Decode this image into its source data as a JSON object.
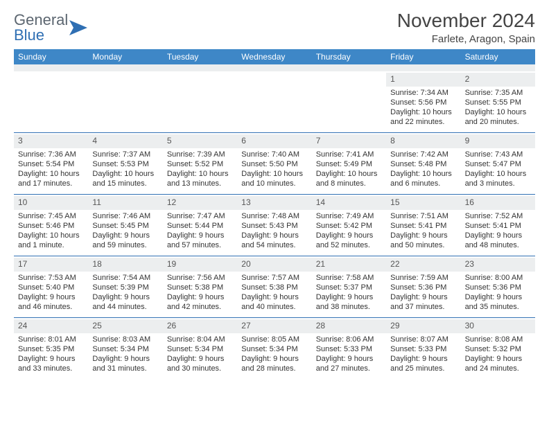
{
  "brand": {
    "part1": "General",
    "part2": "Blue"
  },
  "title": "November 2024",
  "location": "Farlete, Aragon, Spain",
  "colors": {
    "header_bg": "#3e87c7",
    "rule": "#2f6fb3",
    "numbar_bg": "#eceeef",
    "text": "#333333"
  },
  "dow": [
    "Sunday",
    "Monday",
    "Tuesday",
    "Wednesday",
    "Thursday",
    "Friday",
    "Saturday"
  ],
  "weeks": [
    [
      {
        "n": "",
        "sr": "",
        "ss": "",
        "dl": ""
      },
      {
        "n": "",
        "sr": "",
        "ss": "",
        "dl": ""
      },
      {
        "n": "",
        "sr": "",
        "ss": "",
        "dl": ""
      },
      {
        "n": "",
        "sr": "",
        "ss": "",
        "dl": ""
      },
      {
        "n": "",
        "sr": "",
        "ss": "",
        "dl": ""
      },
      {
        "n": "1",
        "sr": "Sunrise: 7:34 AM",
        "ss": "Sunset: 5:56 PM",
        "dl": "Daylight: 10 hours and 22 minutes."
      },
      {
        "n": "2",
        "sr": "Sunrise: 7:35 AM",
        "ss": "Sunset: 5:55 PM",
        "dl": "Daylight: 10 hours and 20 minutes."
      }
    ],
    [
      {
        "n": "3",
        "sr": "Sunrise: 7:36 AM",
        "ss": "Sunset: 5:54 PM",
        "dl": "Daylight: 10 hours and 17 minutes."
      },
      {
        "n": "4",
        "sr": "Sunrise: 7:37 AM",
        "ss": "Sunset: 5:53 PM",
        "dl": "Daylight: 10 hours and 15 minutes."
      },
      {
        "n": "5",
        "sr": "Sunrise: 7:39 AM",
        "ss": "Sunset: 5:52 PM",
        "dl": "Daylight: 10 hours and 13 minutes."
      },
      {
        "n": "6",
        "sr": "Sunrise: 7:40 AM",
        "ss": "Sunset: 5:50 PM",
        "dl": "Daylight: 10 hours and 10 minutes."
      },
      {
        "n": "7",
        "sr": "Sunrise: 7:41 AM",
        "ss": "Sunset: 5:49 PM",
        "dl": "Daylight: 10 hours and 8 minutes."
      },
      {
        "n": "8",
        "sr": "Sunrise: 7:42 AM",
        "ss": "Sunset: 5:48 PM",
        "dl": "Daylight: 10 hours and 6 minutes."
      },
      {
        "n": "9",
        "sr": "Sunrise: 7:43 AM",
        "ss": "Sunset: 5:47 PM",
        "dl": "Daylight: 10 hours and 3 minutes."
      }
    ],
    [
      {
        "n": "10",
        "sr": "Sunrise: 7:45 AM",
        "ss": "Sunset: 5:46 PM",
        "dl": "Daylight: 10 hours and 1 minute."
      },
      {
        "n": "11",
        "sr": "Sunrise: 7:46 AM",
        "ss": "Sunset: 5:45 PM",
        "dl": "Daylight: 9 hours and 59 minutes."
      },
      {
        "n": "12",
        "sr": "Sunrise: 7:47 AM",
        "ss": "Sunset: 5:44 PM",
        "dl": "Daylight: 9 hours and 57 minutes."
      },
      {
        "n": "13",
        "sr": "Sunrise: 7:48 AM",
        "ss": "Sunset: 5:43 PM",
        "dl": "Daylight: 9 hours and 54 minutes."
      },
      {
        "n": "14",
        "sr": "Sunrise: 7:49 AM",
        "ss": "Sunset: 5:42 PM",
        "dl": "Daylight: 9 hours and 52 minutes."
      },
      {
        "n": "15",
        "sr": "Sunrise: 7:51 AM",
        "ss": "Sunset: 5:41 PM",
        "dl": "Daylight: 9 hours and 50 minutes."
      },
      {
        "n": "16",
        "sr": "Sunrise: 7:52 AM",
        "ss": "Sunset: 5:41 PM",
        "dl": "Daylight: 9 hours and 48 minutes."
      }
    ],
    [
      {
        "n": "17",
        "sr": "Sunrise: 7:53 AM",
        "ss": "Sunset: 5:40 PM",
        "dl": "Daylight: 9 hours and 46 minutes."
      },
      {
        "n": "18",
        "sr": "Sunrise: 7:54 AM",
        "ss": "Sunset: 5:39 PM",
        "dl": "Daylight: 9 hours and 44 minutes."
      },
      {
        "n": "19",
        "sr": "Sunrise: 7:56 AM",
        "ss": "Sunset: 5:38 PM",
        "dl": "Daylight: 9 hours and 42 minutes."
      },
      {
        "n": "20",
        "sr": "Sunrise: 7:57 AM",
        "ss": "Sunset: 5:38 PM",
        "dl": "Daylight: 9 hours and 40 minutes."
      },
      {
        "n": "21",
        "sr": "Sunrise: 7:58 AM",
        "ss": "Sunset: 5:37 PM",
        "dl": "Daylight: 9 hours and 38 minutes."
      },
      {
        "n": "22",
        "sr": "Sunrise: 7:59 AM",
        "ss": "Sunset: 5:36 PM",
        "dl": "Daylight: 9 hours and 37 minutes."
      },
      {
        "n": "23",
        "sr": "Sunrise: 8:00 AM",
        "ss": "Sunset: 5:36 PM",
        "dl": "Daylight: 9 hours and 35 minutes."
      }
    ],
    [
      {
        "n": "24",
        "sr": "Sunrise: 8:01 AM",
        "ss": "Sunset: 5:35 PM",
        "dl": "Daylight: 9 hours and 33 minutes."
      },
      {
        "n": "25",
        "sr": "Sunrise: 8:03 AM",
        "ss": "Sunset: 5:34 PM",
        "dl": "Daylight: 9 hours and 31 minutes."
      },
      {
        "n": "26",
        "sr": "Sunrise: 8:04 AM",
        "ss": "Sunset: 5:34 PM",
        "dl": "Daylight: 9 hours and 30 minutes."
      },
      {
        "n": "27",
        "sr": "Sunrise: 8:05 AM",
        "ss": "Sunset: 5:34 PM",
        "dl": "Daylight: 9 hours and 28 minutes."
      },
      {
        "n": "28",
        "sr": "Sunrise: 8:06 AM",
        "ss": "Sunset: 5:33 PM",
        "dl": "Daylight: 9 hours and 27 minutes."
      },
      {
        "n": "29",
        "sr": "Sunrise: 8:07 AM",
        "ss": "Sunset: 5:33 PM",
        "dl": "Daylight: 9 hours and 25 minutes."
      },
      {
        "n": "30",
        "sr": "Sunrise: 8:08 AM",
        "ss": "Sunset: 5:32 PM",
        "dl": "Daylight: 9 hours and 24 minutes."
      }
    ]
  ]
}
